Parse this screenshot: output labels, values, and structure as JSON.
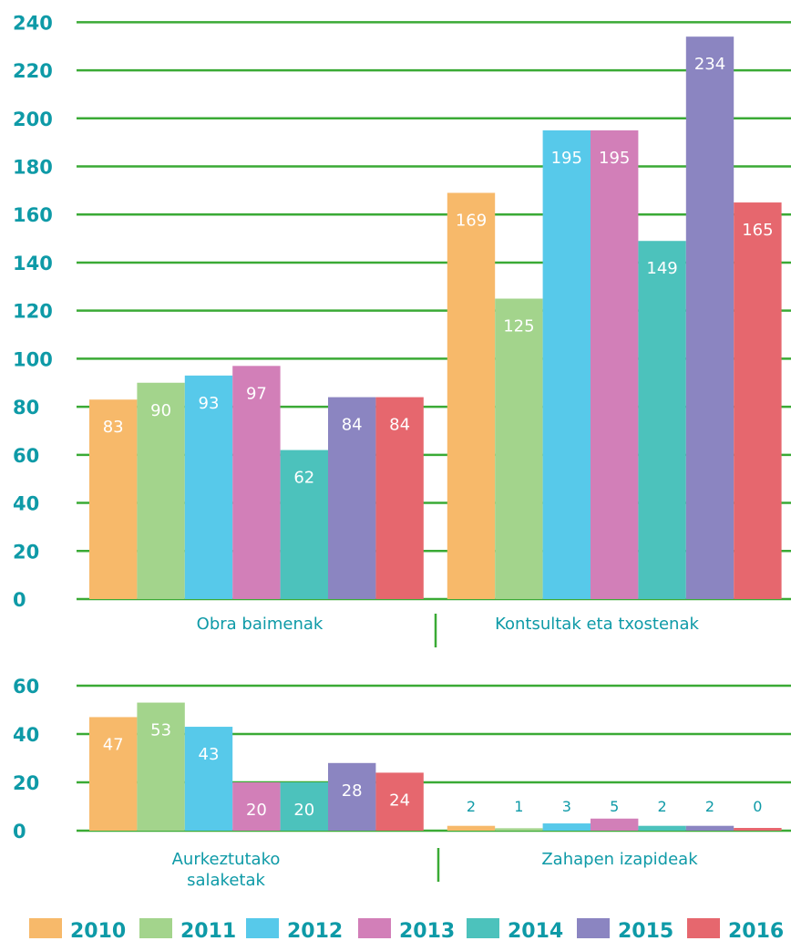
{
  "chart_data": [
    {
      "type": "bar",
      "categories": [
        "Obra baimenak",
        "Kontsultak eta txostenak"
      ],
      "series": [
        {
          "name": "2010",
          "values": [
            83,
            169
          ]
        },
        {
          "name": "2011",
          "values": [
            90,
            125
          ]
        },
        {
          "name": "2012",
          "values": [
            93,
            195
          ]
        },
        {
          "name": "2013",
          "values": [
            97,
            195
          ]
        },
        {
          "name": "2014",
          "values": [
            62,
            149
          ]
        },
        {
          "name": "2015",
          "values": [
            84,
            234
          ]
        },
        {
          "name": "2016",
          "values": [
            84,
            165
          ]
        }
      ],
      "ylim": [
        0,
        240
      ],
      "yticks": [
        0,
        20,
        40,
        60,
        80,
        100,
        120,
        140,
        160,
        180,
        200,
        220,
        240
      ],
      "grid": true
    },
    {
      "type": "bar",
      "categories": [
        "Aurkeztutako salaketak",
        "Zahapen izapideak"
      ],
      "series": [
        {
          "name": "2010",
          "values": [
            47,
            2
          ]
        },
        {
          "name": "2011",
          "values": [
            53,
            1
          ]
        },
        {
          "name": "2012",
          "values": [
            43,
            3
          ]
        },
        {
          "name": "2013",
          "values": [
            20,
            5
          ]
        },
        {
          "name": "2014",
          "values": [
            20,
            2
          ]
        },
        {
          "name": "2015",
          "values": [
            28,
            2
          ]
        },
        {
          "name": "2016",
          "values": [
            24,
            0
          ]
        }
      ],
      "ylim": [
        0,
        60
      ],
      "yticks": [
        0,
        20,
        40,
        60
      ],
      "grid": true
    }
  ],
  "labels": {
    "top_cat1": "Obra baimenak",
    "top_cat2": "Kontsultak eta txostenak",
    "bot_cat1_line1": "Aurkeztutako",
    "bot_cat1_line2": "salaketak",
    "bot_cat2": "Zahapen izapideak"
  },
  "legend": [
    {
      "label": "2010",
      "color": "#f7b96a"
    },
    {
      "label": "2011",
      "color": "#a3d48c"
    },
    {
      "label": "2012",
      "color": "#57c9ea"
    },
    {
      "label": "2013",
      "color": "#d27fb8"
    },
    {
      "label": "2014",
      "color": "#4cc2bc"
    },
    {
      "label": "2015",
      "color": "#8b85c1"
    },
    {
      "label": "2016",
      "color": "#e6676e"
    }
  ],
  "colors": {
    "grid": "#3aaa35",
    "text": "#0e9aa7"
  }
}
